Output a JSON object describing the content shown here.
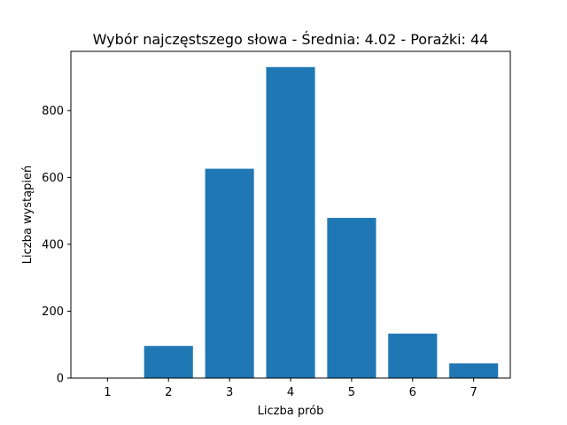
{
  "chart_data": {
    "type": "bar",
    "title": "Wybór najczęstszego słowa - Średnia: 4.02 - Porażki: 44",
    "xlabel": "Liczba prób",
    "ylabel": "Liczba wystąpień",
    "categories": [
      "1",
      "2",
      "3",
      "4",
      "5",
      "6",
      "7"
    ],
    "values": [
      0,
      96,
      626,
      930,
      479,
      133,
      44
    ],
    "ylim": [
      0,
      977
    ],
    "yticks": [
      0,
      200,
      400,
      600,
      800
    ],
    "grid": false,
    "bar_color": "#1f77b4"
  }
}
